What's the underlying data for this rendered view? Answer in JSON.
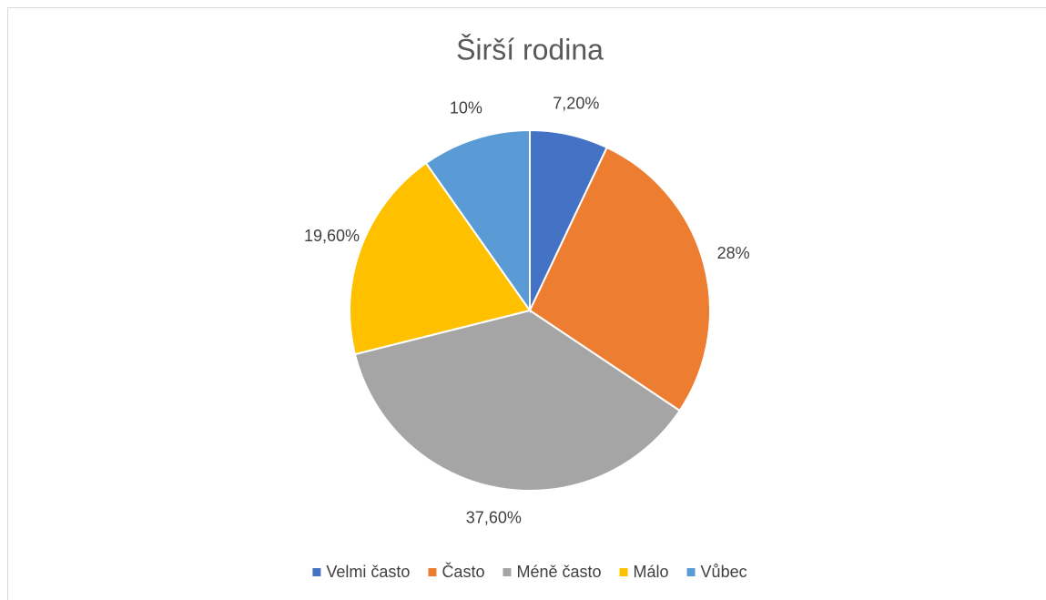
{
  "chart_data": {
    "type": "pie",
    "title": "Širší rodina",
    "categories": [
      "Velmi často",
      "Často",
      "Méně často",
      "Málo",
      "Vůbec"
    ],
    "values": [
      7.2,
      28,
      37.6,
      19.6,
      10
    ],
    "value_labels": [
      "7,20%",
      "28%",
      "37,60%",
      "19,60%",
      "10%"
    ],
    "colors": [
      "#4472c4",
      "#ed7d31",
      "#a5a5a5",
      "#ffc000",
      "#5b9bd5"
    ],
    "legend": "bottom"
  }
}
